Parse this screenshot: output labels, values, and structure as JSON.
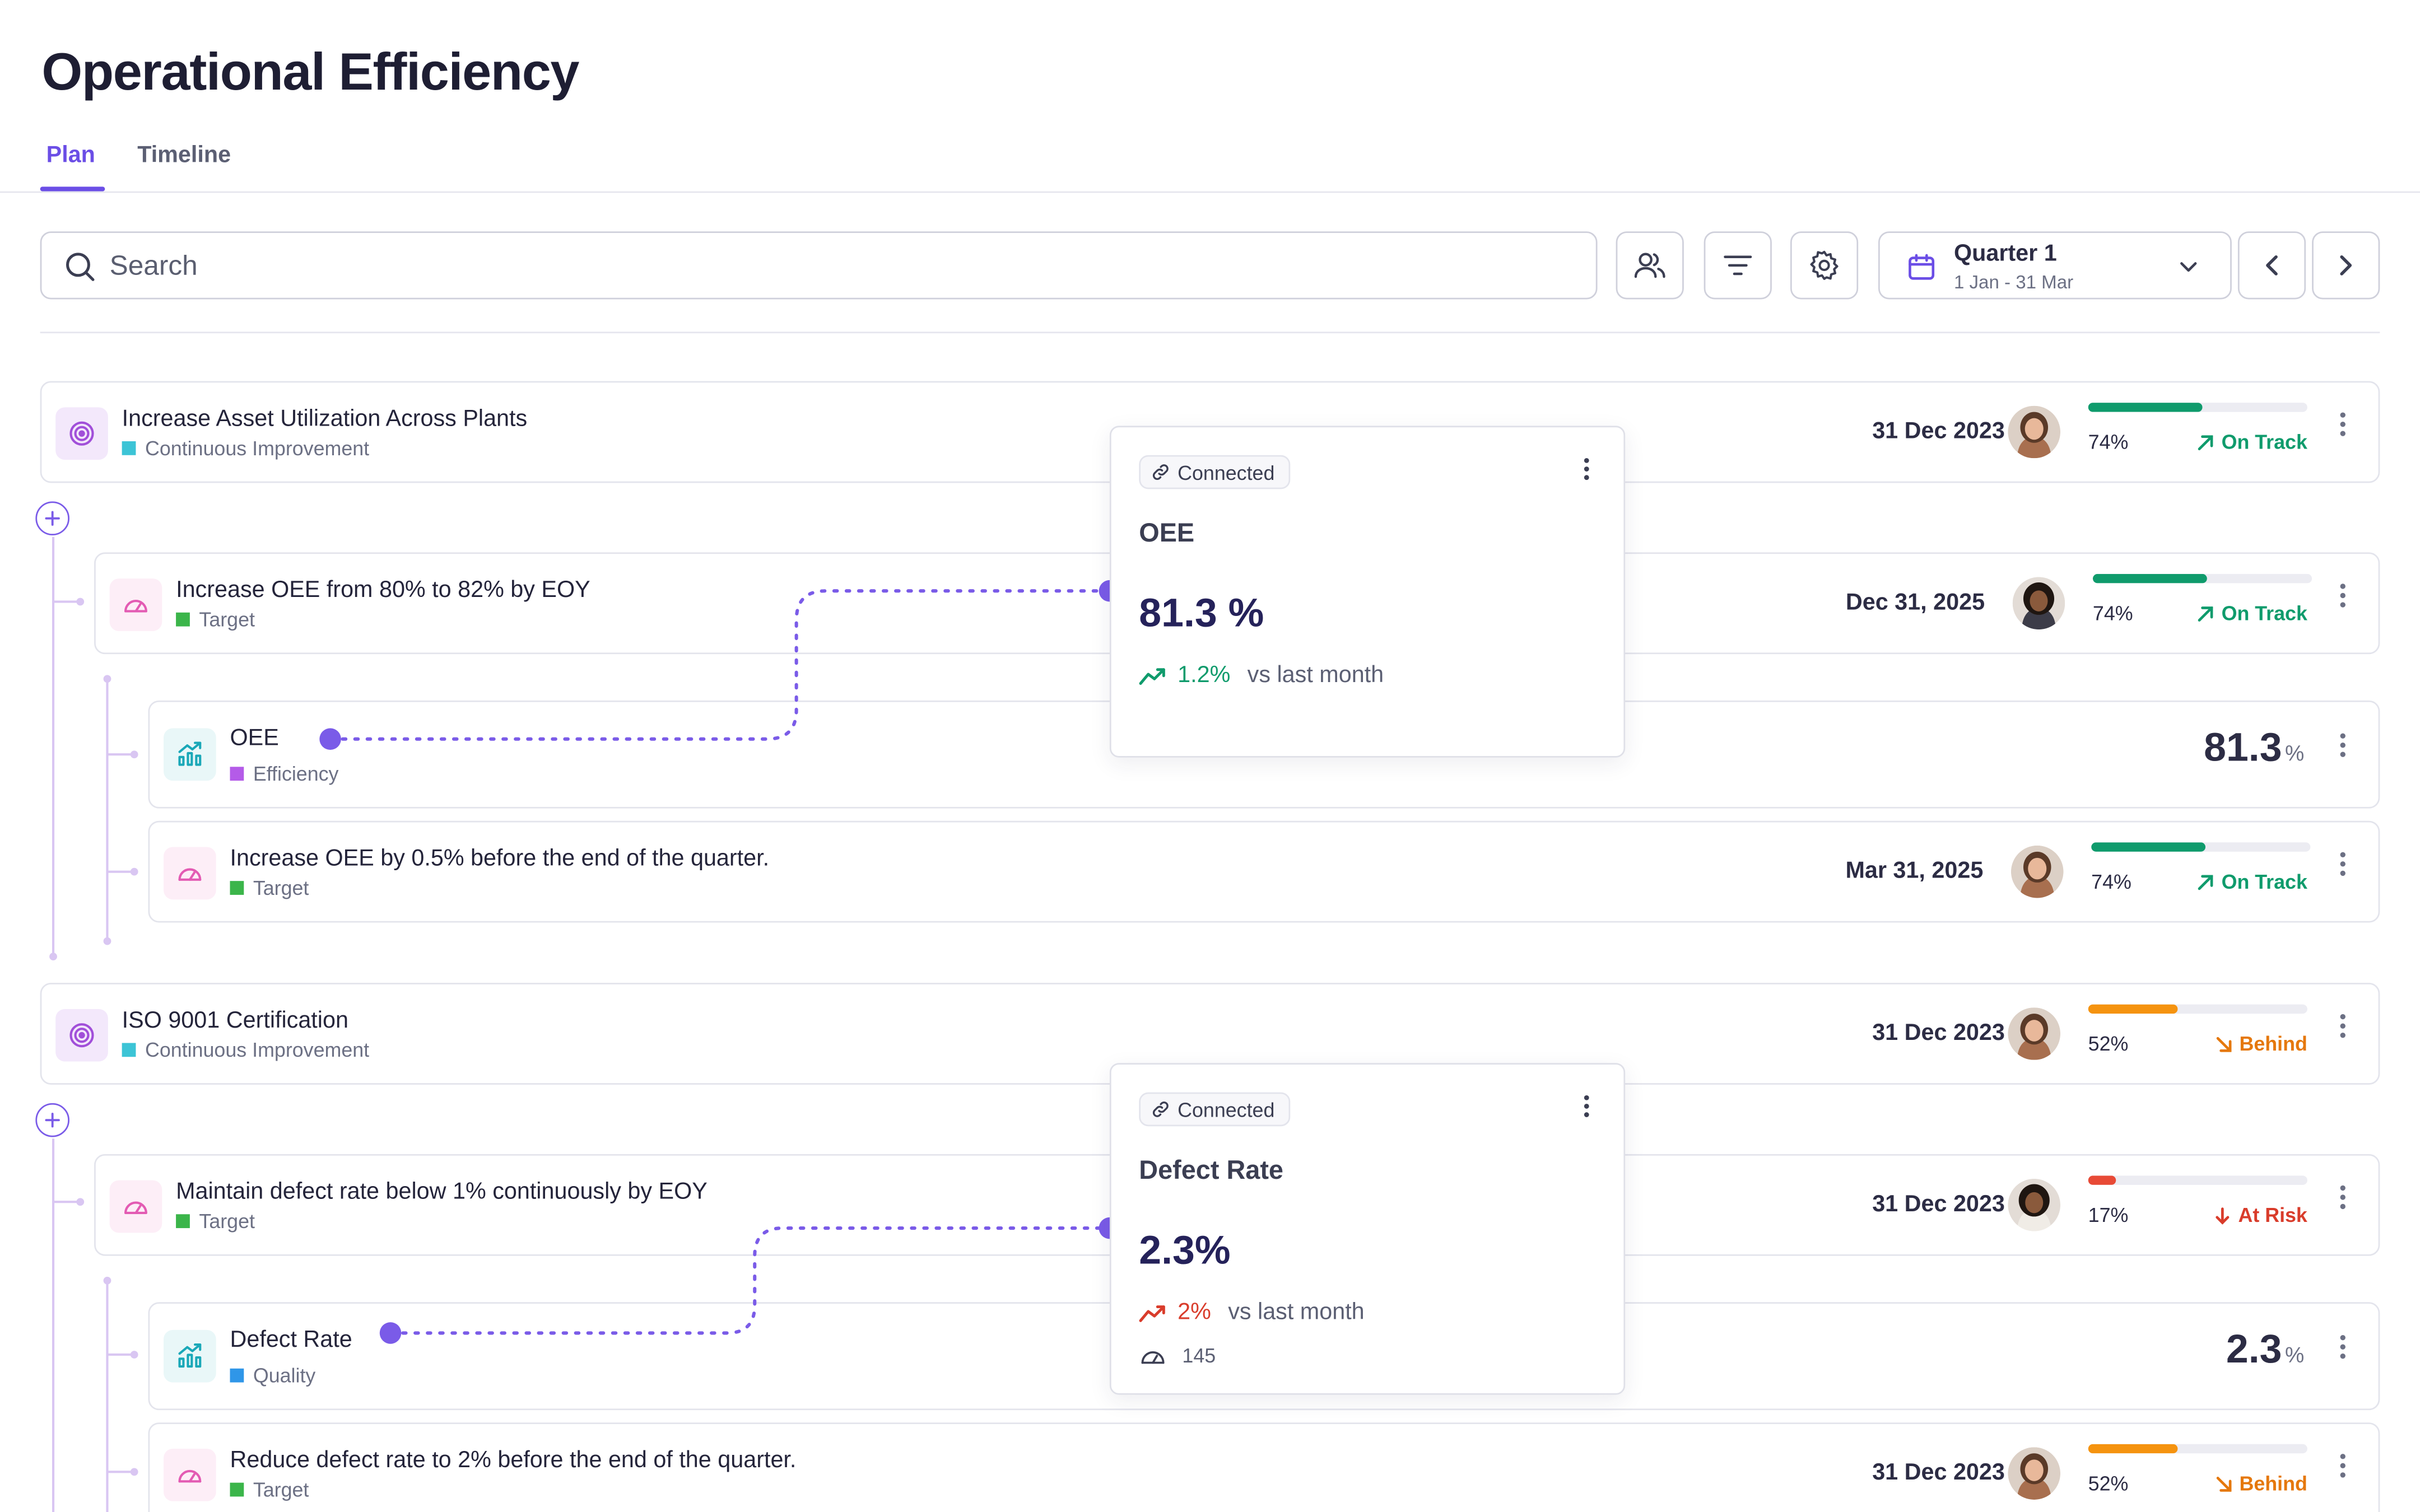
{
  "page": {
    "title": "Operational Efficiency"
  },
  "tabs": [
    {
      "label": "Plan",
      "active": true
    },
    {
      "label": "Timeline",
      "active": false
    }
  ],
  "toolbar": {
    "search_placeholder": "Search",
    "people_icon": "people-icon",
    "filter_icon": "filter-icon",
    "settings_icon": "gear-icon",
    "period": {
      "label": "Quarter 1",
      "range": "1 Jan - 31 Mar"
    }
  },
  "colors": {
    "accent": "#6b4ee6",
    "on_track": "#0f9b6c",
    "behind": "#e5780c",
    "at_risk": "#d93c2b",
    "continuous_improvement": "#3cc4d6",
    "target": "#3bb54a",
    "efficiency": "#b45be8",
    "quality": "#2f96e8"
  },
  "groups": [
    {
      "objective": {
        "title": "Increase Asset Utilization Across Plants",
        "category": "Continuous Improvement",
        "date": "31 Dec 2023",
        "progress": 74,
        "progress_label": "74%",
        "status": "On Track"
      },
      "key_result": {
        "title": "Increase OEE from 80% to 82% by EOY",
        "category": "Target",
        "date": "Dec 31, 2025",
        "progress": 74,
        "progress_label": "74%",
        "status": "On Track"
      },
      "metric": {
        "title": "OEE",
        "category": "Efficiency",
        "value": "81.3",
        "unit": "%"
      },
      "sub_target": {
        "title": "Increase OEE by 0.5% before the end of the quarter.",
        "category": "Target",
        "date": "Mar 31, 2025",
        "progress": 74,
        "progress_label": "74%",
        "status": "On Track"
      },
      "popup": {
        "chip": "Connected",
        "name": "OEE",
        "value": "81.3 %",
        "change": "1.2%",
        "comparison": "vs last month",
        "direction": "up"
      }
    },
    {
      "objective": {
        "title": "ISO 9001 Certification",
        "category": "Continuous Improvement",
        "date": "31 Dec 2023",
        "progress": 52,
        "progress_label": "52%",
        "status": "Behind"
      },
      "key_result": {
        "title": "Maintain defect rate below 1% continuously by EOY",
        "category": "Target",
        "date": "31 Dec 2023",
        "progress": 17,
        "progress_label": "17%",
        "status": "At Risk"
      },
      "metric": {
        "title": "Defect Rate",
        "category": "Quality",
        "value": "2.3",
        "unit": "%"
      },
      "sub_target": {
        "title": "Reduce defect rate to 2% before the end of the quarter.",
        "category": "Target",
        "date": "31 Dec 2023",
        "progress": 52,
        "progress_label": "52%",
        "status": "Behind"
      },
      "popup": {
        "chip": "Connected",
        "name": "Defect Rate",
        "value": "2.3%",
        "change": "2%",
        "comparison": "vs last month",
        "direction": "up-bad",
        "count": "145"
      }
    }
  ]
}
